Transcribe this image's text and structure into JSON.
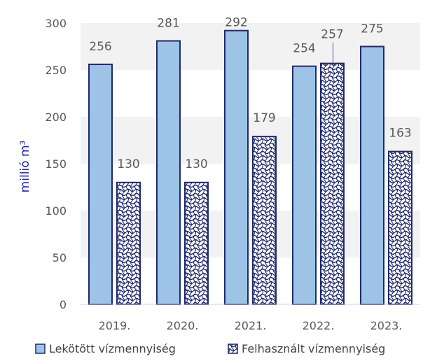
{
  "chart_data": {
    "type": "bar",
    "categories": [
      "2019.",
      "2020.",
      "2021.",
      "2022.",
      "2023."
    ],
    "series": [
      {
        "name": "Lekötött vízmennyiség",
        "values": [
          256,
          281,
          292,
          254,
          275
        ],
        "color": "#9dc3e6",
        "border": "#1f2a6e",
        "pattern": "solid"
      },
      {
        "name": "Felhasznált vízmennyiség",
        "values": [
          130,
          130,
          179,
          257,
          163
        ],
        "color": "#ffffff",
        "border": "#1f2a6e",
        "pattern": "wave-hatch"
      }
    ],
    "ylabel": "millió m³",
    "ylim": [
      0,
      300
    ],
    "yticks": [
      0,
      50,
      100,
      150,
      200,
      250,
      300
    ],
    "data_labels": true,
    "grid": true,
    "grid_style": "alternating-bands",
    "legend_position": "bottom",
    "leader_line_color": "#7b68c8"
  }
}
